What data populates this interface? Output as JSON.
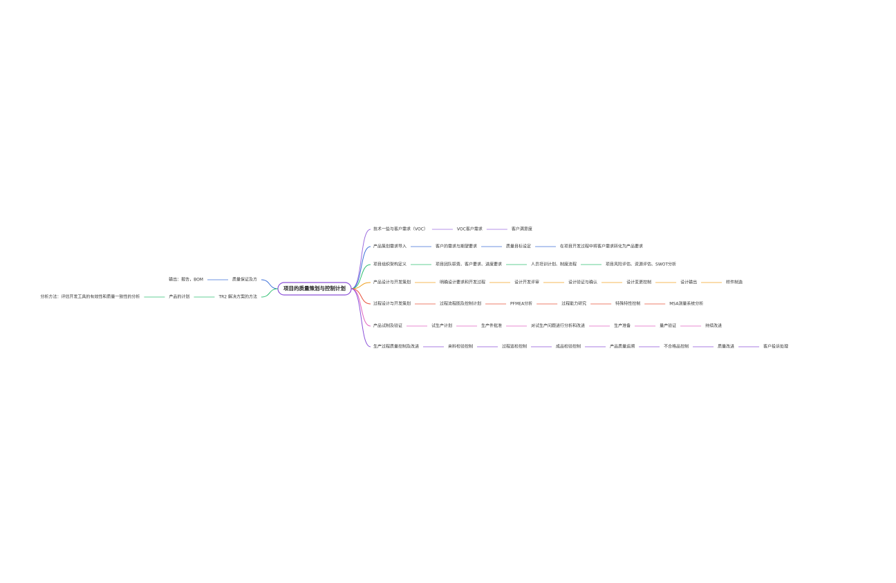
{
  "center": "项目的质量策划与控制计划",
  "left_branches": [
    {
      "label": "质量保证及方",
      "color": "#3b6fd8",
      "children": [
        "输出：报告，BOM"
      ]
    },
    {
      "label": "TR2 解决方案的方法",
      "color": "#2fbf71",
      "children": [
        "产品的计划",
        "分析方法：评估开发工具的有效性和质量一致性的分析"
      ]
    }
  ],
  "right_branches": [
    {
      "label": "技术一些与客户需求（VOC）",
      "color": "#9b6bdf",
      "children": [
        "VOC客户需求",
        "客户满意度"
      ]
    },
    {
      "label": "产品策划需求导入",
      "color": "#3b6fd8",
      "children": [
        "客户的需求与期望要求",
        "质量目标设定",
        "在项目开发过程中将客户需求转化为产品要求"
      ]
    },
    {
      "label": "项目组织架构定义",
      "color": "#2fbf71",
      "children": [
        "项目团队职责、客户要求、进度要求",
        "人员培训计划、制度流程",
        "项目风险评估、资源评估、SWOT分析"
      ]
    },
    {
      "label": "产品设计与开发策划",
      "color": "#f0a020",
      "children": [
        "明确设计要求和开发过程",
        "设计开发评审",
        "设计验证与确认",
        "设计变更控制",
        "设计输出",
        "样件制造"
      ]
    },
    {
      "label": "过程设计与开发策划",
      "color": "#e8503a",
      "children": [
        "过程流程图及控制计划",
        "PFMEA分析",
        "过程能力研究",
        "特殊特性控制",
        "MSA测量系统分析"
      ]
    },
    {
      "label": "产品试制及验证",
      "color": "#e060c0",
      "children": [
        "试生产计划",
        "生产件批准",
        "对试生产问题进行分析和改进",
        "生产准备",
        "量产验证",
        "持续改进"
      ]
    },
    {
      "label": "生产过程质量控制及改进",
      "color": "#8a4fd8",
      "children": [
        "来料检验控制",
        "过程巡检控制",
        "成品检验控制",
        "产品质量追溯",
        "不合格品控制",
        "质量改进",
        "客户投诉处理"
      ]
    }
  ]
}
